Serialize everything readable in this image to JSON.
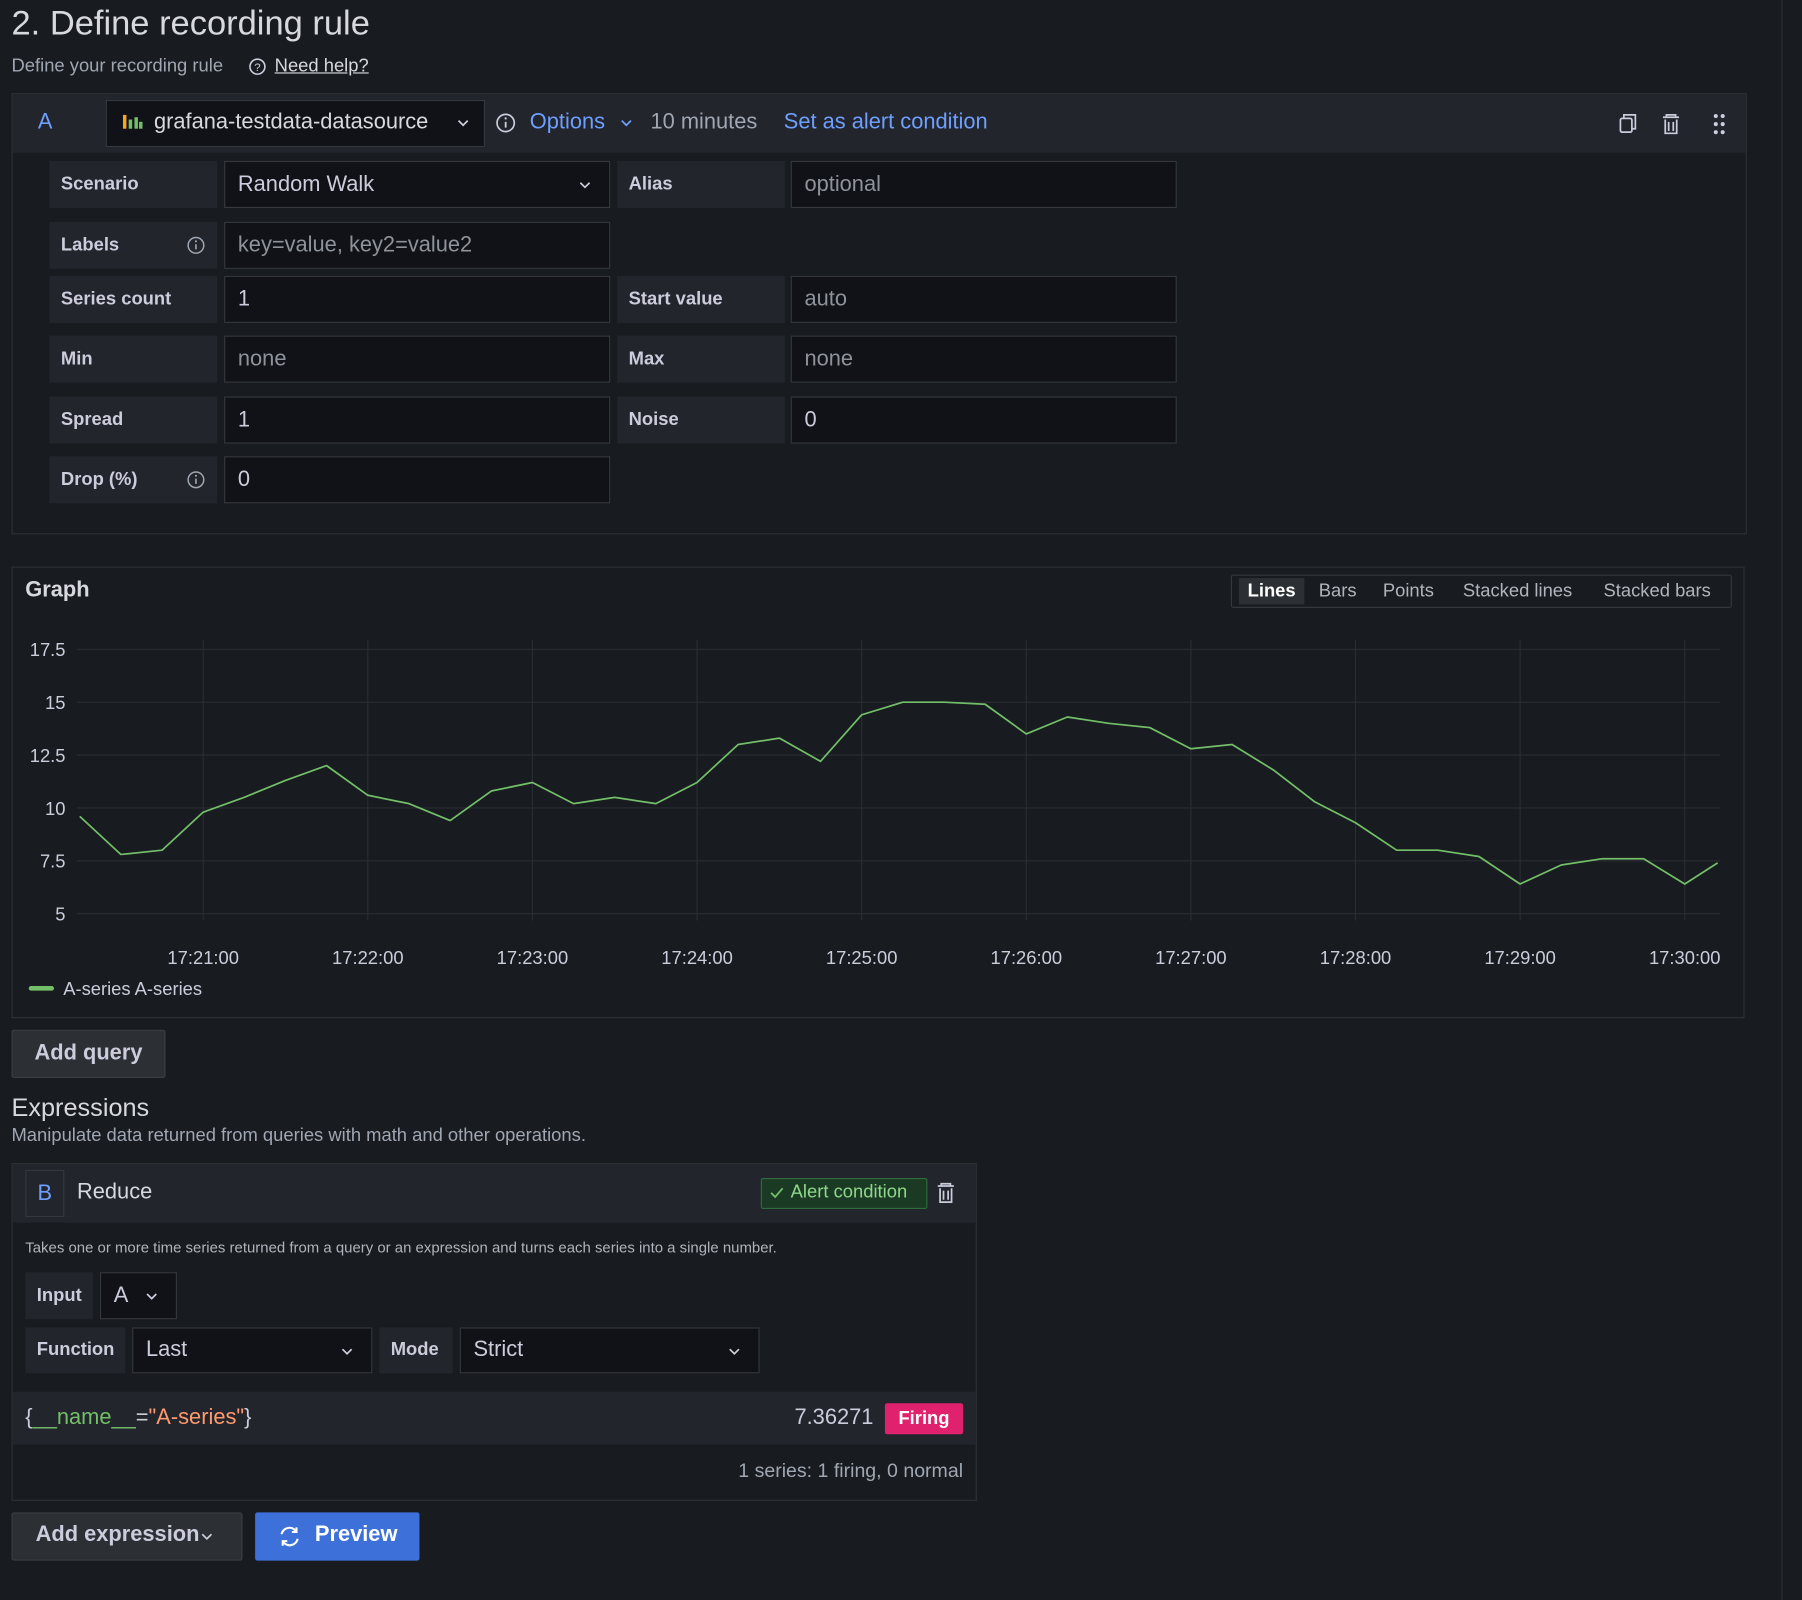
{
  "header": {
    "title": "2. Define recording rule",
    "subtitle": "Define your recording rule",
    "help": "Need help?"
  },
  "query": {
    "ref": "A",
    "datasource": "grafana-testdata-datasource",
    "options": "Options",
    "interval": "10 minutes",
    "alert_link": "Set as alert condition",
    "fields": [
      {
        "label": "Scenario",
        "value": "Random Walk"
      },
      {
        "label": "Alias",
        "placeholder": "optional"
      },
      {
        "label": "Labels",
        "placeholder": "key=value, key2=value2"
      },
      {
        "label": "Series count",
        "value": 1
      },
      {
        "label": "Start value",
        "placeholder": "auto"
      },
      {
        "label": "Min",
        "placeholder": "none"
      },
      {
        "label": "Max",
        "placeholder": "none"
      },
      {
        "label": "Spread",
        "value": 1
      },
      {
        "label": "Noise",
        "value": 0
      },
      {
        "label": "Drop (%)",
        "value": 0
      }
    ]
  },
  "chart_data": {
    "type": "line",
    "title": "Graph",
    "view_modes": [
      "Lines",
      "Bars",
      "Points",
      "Stacked lines",
      "Stacked bars"
    ],
    "active_mode": "Lines",
    "x": [
      "17:20:15",
      "17:20:30",
      "17:20:45",
      "17:21:00",
      "17:21:15",
      "17:21:30",
      "17:21:45",
      "17:22:00",
      "17:22:15",
      "17:22:30",
      "17:22:45",
      "17:23:00",
      "17:23:15",
      "17:23:30",
      "17:23:45",
      "17:24:00",
      "17:24:15",
      "17:24:30",
      "17:24:45",
      "17:25:00",
      "17:25:15",
      "17:25:30",
      "17:25:45",
      "17:26:00",
      "17:26:15",
      "17:26:30",
      "17:26:45",
      "17:27:00",
      "17:27:15",
      "17:27:30",
      "17:27:45",
      "17:28:00",
      "17:28:15",
      "17:28:30",
      "17:28:45",
      "17:29:00",
      "17:29:15",
      "17:29:30",
      "17:29:45",
      "17:30:00",
      "17:30:12"
    ],
    "series": [
      {
        "name": "A-series A-series",
        "color": "#73bf69",
        "values": [
          9.6,
          7.8,
          8.0,
          9.8,
          10.5,
          11.3,
          12.0,
          10.6,
          10.2,
          9.4,
          10.8,
          11.2,
          10.2,
          10.5,
          10.2,
          11.2,
          13.0,
          13.3,
          12.2,
          14.4,
          15.0,
          15.0,
          14.9,
          13.5,
          14.3,
          14.0,
          13.8,
          12.8,
          13.0,
          11.8,
          10.3,
          9.3,
          8.0,
          8.0,
          7.7,
          6.4,
          7.3,
          7.6,
          7.6,
          6.4,
          7.4
        ]
      }
    ],
    "xlim": [
      "17:20:14",
      "17:30:13"
    ],
    "xticks": [
      "17:21:00",
      "17:22:00",
      "17:23:00",
      "17:24:00",
      "17:25:00",
      "17:26:00",
      "17:27:00",
      "17:28:00",
      "17:29:00",
      "17:30:00"
    ],
    "ylim": [
      5,
      17.5
    ],
    "yticks": [
      17.5,
      15,
      12.5,
      10,
      7.5,
      5
    ],
    "grid": true
  },
  "add_query": "Add query",
  "expressions": {
    "title": "Expressions",
    "description": "Manipulate data returned from queries with math and other operations.",
    "ref": "B",
    "type": "Reduce",
    "alert_condition": "Alert condition",
    "help": "Takes one or more time series returned from a query or an expression and turns each series into a single number.",
    "input_label": "Input",
    "input": "A",
    "function_label": "Function",
    "function": "Last",
    "mode_label": "Mode",
    "mode": "Strict",
    "result_parts": [
      "{",
      "__name__",
      "=",
      "\"A-series\"",
      "}"
    ],
    "result_value": "7.36271",
    "state": "Firing",
    "summary": "1 series: 1 firing, 0 normal"
  },
  "buttons": {
    "add_expression": "Add expression",
    "preview": "Preview"
  }
}
